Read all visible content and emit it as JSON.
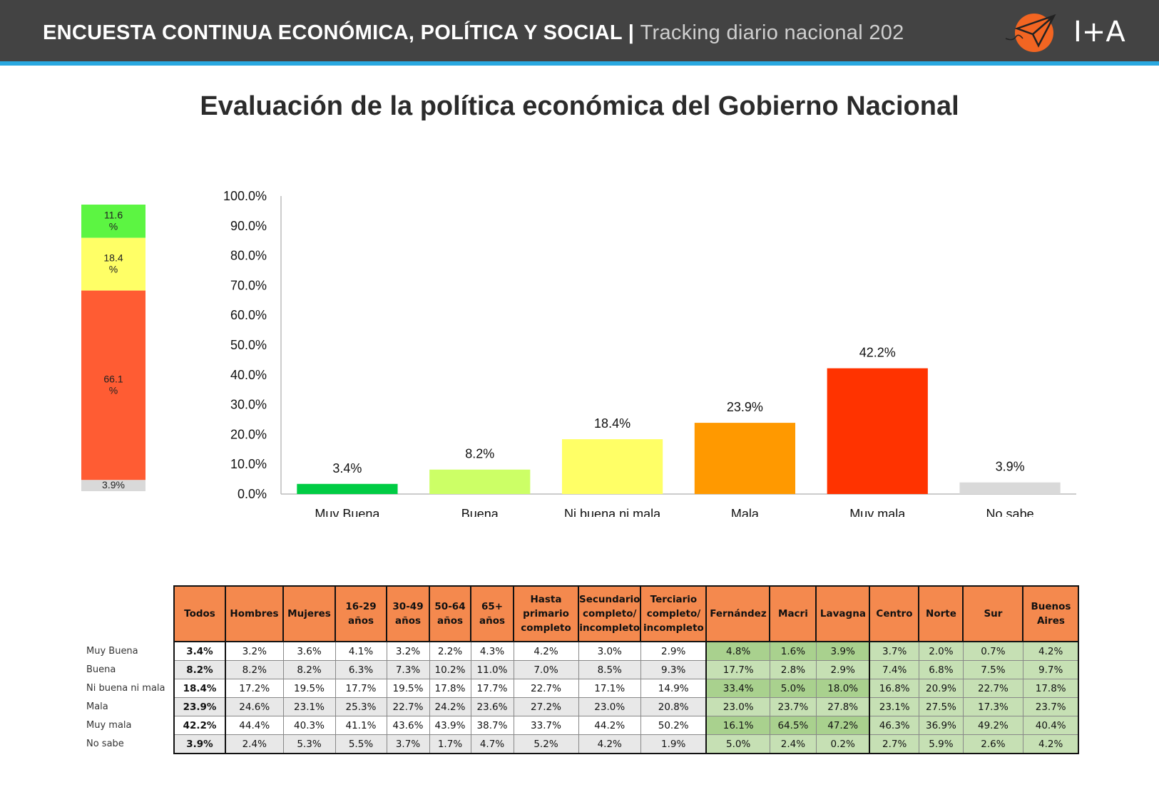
{
  "header": {
    "title_bold": "ENCUESTA CONTINUA ECONÓMICA, POLÍTICA Y SOCIAL |",
    "title_thin": "Tracking diario nacional 202",
    "brand_text": "I+A",
    "bar_color": "#434343",
    "accent_color": "#29a8e0"
  },
  "page_title": "Evaluación de la política económica del Gobierno Nacional",
  "stack": {
    "segments": [
      {
        "label": "11.6\n%",
        "value": 11.6,
        "color": "#5cf542"
      },
      {
        "label": "18.4\n%",
        "value": 18.4,
        "color": "#ffff66"
      },
      {
        "label": "66.1\n%",
        "value": 66.1,
        "color": "#ff5c33"
      },
      {
        "label": "3.9%",
        "value": 3.9,
        "color": "#d9d9d9"
      }
    ]
  },
  "chart_data": {
    "type": "bar",
    "categories": [
      "Muy Buena",
      "Buena",
      "Ni buena ni mala",
      "Mala",
      "Muy mala",
      "No sabe"
    ],
    "values": [
      3.4,
      8.2,
      18.4,
      23.9,
      42.2,
      3.9
    ],
    "value_labels": [
      "3.4%",
      "8.2%",
      "18.4%",
      "23.9%",
      "42.2%",
      "3.9%"
    ],
    "colors": [
      "#00cc44",
      "#ccff66",
      "#ffff66",
      "#ff9900",
      "#ff3300",
      "#d9d9d9"
    ],
    "ylim": [
      0,
      100
    ],
    "yticks": [
      "0.0%",
      "10.0%",
      "20.0%",
      "30.0%",
      "40.0%",
      "50.0%",
      "60.0%",
      "70.0%",
      "80.0%",
      "90.0%",
      "100.0%"
    ],
    "grid": false,
    "title": "",
    "xlabel": "",
    "ylabel": ""
  },
  "table": {
    "headers": [
      "Todos",
      "Hombres",
      "Mujeres",
      "16-29\naños",
      "30-49\naños",
      "50-64\naños",
      "65+\naños",
      "Hasta\nprimario\ncompleto",
      "Secundario\ncompleto/\nincompleto",
      "Terciario\ncompleto/\nincompleto",
      "Fernández",
      "Macri",
      "Lavagna",
      "Centro",
      "Norte",
      "Sur",
      "Buenos\nAires"
    ],
    "rows": [
      {
        "label": "Muy Buena",
        "values": [
          "3.4%",
          "3.2%",
          "3.6%",
          "4.1%",
          "3.2%",
          "2.2%",
          "4.3%",
          "4.2%",
          "3.0%",
          "2.9%",
          "4.8%",
          "1.6%",
          "3.9%",
          "3.7%",
          "2.0%",
          "0.7%",
          "4.2%"
        ]
      },
      {
        "label": "Buena",
        "values": [
          "8.2%",
          "8.2%",
          "8.2%",
          "6.3%",
          "7.3%",
          "10.2%",
          "11.0%",
          "7.0%",
          "8.5%",
          "9.3%",
          "17.7%",
          "2.8%",
          "2.9%",
          "7.4%",
          "6.8%",
          "7.5%",
          "9.7%"
        ]
      },
      {
        "label": "Ni buena ni mala",
        "values": [
          "18.4%",
          "17.2%",
          "19.5%",
          "17.7%",
          "19.5%",
          "17.8%",
          "17.7%",
          "22.7%",
          "17.1%",
          "14.9%",
          "33.4%",
          "5.0%",
          "18.0%",
          "16.8%",
          "20.9%",
          "22.7%",
          "17.8%"
        ]
      },
      {
        "label": "Mala",
        "values": [
          "23.9%",
          "24.6%",
          "23.1%",
          "25.3%",
          "22.7%",
          "24.2%",
          "23.6%",
          "27.2%",
          "23.0%",
          "20.8%",
          "23.0%",
          "23.7%",
          "27.8%",
          "23.1%",
          "27.5%",
          "17.3%",
          "23.7%"
        ]
      },
      {
        "label": "Muy mala",
        "values": [
          "42.2%",
          "44.4%",
          "40.3%",
          "41.1%",
          "43.6%",
          "43.9%",
          "38.7%",
          "33.7%",
          "44.2%",
          "50.2%",
          "16.1%",
          "64.5%",
          "47.2%",
          "46.3%",
          "36.9%",
          "49.2%",
          "40.4%"
        ]
      },
      {
        "label": "No sabe",
        "values": [
          "3.9%",
          "2.4%",
          "5.3%",
          "5.5%",
          "3.7%",
          "1.7%",
          "4.7%",
          "5.2%",
          "4.2%",
          "1.9%",
          "5.0%",
          "2.4%",
          "0.2%",
          "2.7%",
          "5.9%",
          "2.6%",
          "4.2%"
        ]
      }
    ],
    "header_color": "#f4894e"
  }
}
